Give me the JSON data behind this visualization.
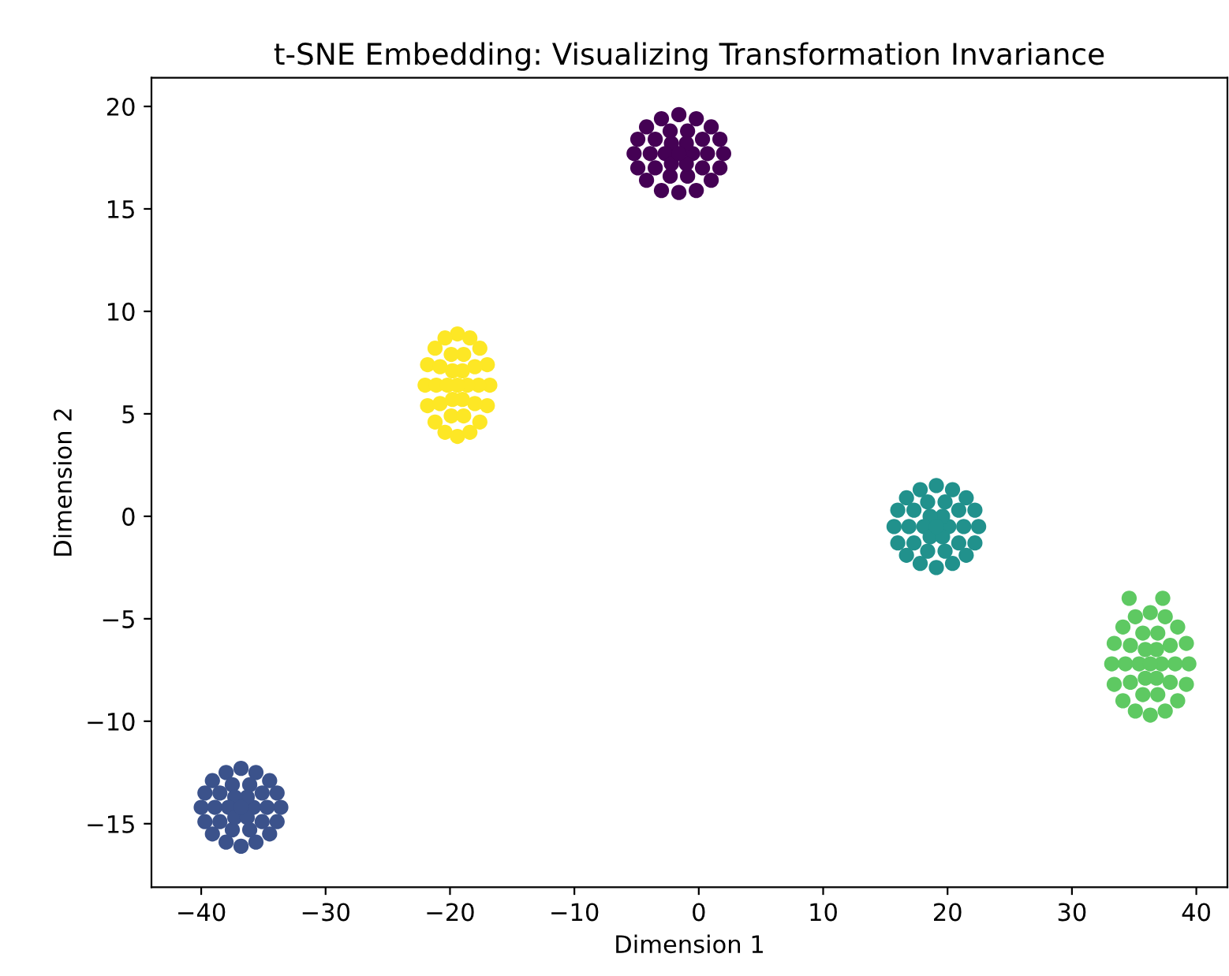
{
  "chart_data": {
    "type": "scatter",
    "title": "t-SNE Embedding: Visualizing Transformation Invariance",
    "xlabel": "Dimension 1",
    "ylabel": "Dimension 2",
    "xlim": [
      -44,
      42.5
    ],
    "ylim": [
      -18.1,
      21.4
    ],
    "xticks": [
      {
        "value": -40,
        "label": "−40"
      },
      {
        "value": -30,
        "label": "−30"
      },
      {
        "value": -20,
        "label": "−20"
      },
      {
        "value": -10,
        "label": "−10"
      },
      0,
      10,
      20,
      30,
      40
    ],
    "yticks": [
      {
        "value": -15,
        "label": "−15"
      },
      {
        "value": -10,
        "label": "−10"
      },
      {
        "value": -5,
        "label": "−5"
      },
      0,
      5,
      10,
      15,
      20
    ],
    "grid": false,
    "marker": "circle",
    "series": [
      {
        "color": "#440154",
        "x": [
          2.0,
          1.7,
          1.0,
          -0.2,
          -1.6,
          -3.0,
          -4.2,
          -4.9,
          -5.2,
          -4.9,
          -4.2,
          -3.0,
          -1.6,
          -0.2,
          1.0,
          1.7,
          0.7,
          0.3,
          -0.9,
          -2.3,
          -3.5,
          -3.9,
          -3.5,
          -2.3,
          -0.9,
          0.3,
          -0.5,
          -1.0,
          -2.2,
          -2.7,
          -2.2,
          -1.0,
          -1.6
        ],
        "values": [
          17.7,
          18.4,
          19.0,
          19.4,
          19.6,
          19.4,
          19.0,
          18.4,
          17.7,
          17.0,
          16.4,
          15.9,
          15.8,
          15.9,
          16.4,
          17.0,
          17.7,
          18.4,
          18.8,
          18.8,
          18.4,
          17.7,
          17.0,
          16.6,
          16.6,
          17.0,
          17.7,
          18.2,
          18.2,
          17.7,
          17.2,
          17.2,
          17.7
        ]
      },
      {
        "color": "#3b528b",
        "x": [
          -33.6,
          -33.9,
          -34.5,
          -35.6,
          -36.8,
          -38.0,
          -39.1,
          -39.7,
          -40.0,
          -39.7,
          -39.1,
          -38.0,
          -36.8,
          -35.6,
          -34.5,
          -33.9,
          -34.7,
          -35.1,
          -36.1,
          -37.5,
          -38.5,
          -38.9,
          -38.5,
          -37.5,
          -36.1,
          -35.1,
          -35.8,
          -36.3,
          -37.3,
          -37.8,
          -37.3,
          -36.3,
          -36.8
        ],
        "values": [
          -14.2,
          -13.5,
          -12.9,
          -12.5,
          -12.3,
          -12.5,
          -12.9,
          -13.5,
          -14.2,
          -14.9,
          -15.5,
          -15.9,
          -16.1,
          -15.9,
          -15.5,
          -14.9,
          -14.2,
          -13.5,
          -13.1,
          -13.1,
          -13.5,
          -14.2,
          -14.9,
          -15.3,
          -15.3,
          -14.9,
          -14.2,
          -13.7,
          -13.7,
          -14.2,
          -14.7,
          -14.7,
          -14.2
        ]
      },
      {
        "color": "#21918c",
        "x": [
          22.5,
          22.2,
          21.5,
          20.4,
          19.1,
          17.8,
          16.7,
          16.0,
          15.7,
          16.0,
          16.7,
          17.8,
          19.1,
          20.4,
          21.5,
          22.2,
          21.3,
          20.9,
          19.8,
          18.4,
          17.3,
          16.9,
          17.3,
          18.4,
          19.8,
          20.9,
          20.1,
          19.6,
          18.6,
          18.1,
          18.6,
          19.6,
          19.1
        ],
        "values": [
          -0.5,
          0.3,
          0.9,
          1.3,
          1.5,
          1.3,
          0.9,
          0.3,
          -0.5,
          -1.3,
          -1.9,
          -2.3,
          -2.5,
          -2.3,
          -1.9,
          -1.3,
          -0.5,
          0.3,
          0.7,
          0.7,
          0.3,
          -0.5,
          -1.3,
          -1.7,
          -1.7,
          -1.3,
          -0.5,
          0.0,
          0.0,
          -0.5,
          -1.0,
          -1.0,
          -0.5
        ]
      },
      {
        "color": "#5ec962",
        "x": [
          39.4,
          39.2,
          38.5,
          37.5,
          36.3,
          35.1,
          34.1,
          33.4,
          33.2,
          33.4,
          34.1,
          35.1,
          36.3,
          37.5,
          38.5,
          39.2,
          38.3,
          37.9,
          36.9,
          35.7,
          34.7,
          34.3,
          34.7,
          35.7,
          36.9,
          37.9,
          37.2,
          36.8,
          35.9,
          35.4,
          35.9,
          36.8,
          36.3,
          34.6,
          37.3
        ],
        "values": [
          -7.2,
          -6.2,
          -5.4,
          -4.9,
          -4.7,
          -4.9,
          -5.4,
          -6.2,
          -7.2,
          -8.2,
          -9.0,
          -9.5,
          -9.7,
          -9.5,
          -9.0,
          -8.2,
          -7.2,
          -6.3,
          -5.7,
          -5.7,
          -6.3,
          -7.2,
          -8.1,
          -8.7,
          -8.7,
          -8.1,
          -7.2,
          -6.5,
          -6.5,
          -7.2,
          -7.9,
          -7.9,
          -7.2,
          -4.0,
          -4.0
        ]
      },
      {
        "color": "#fde725",
        "x": [
          -16.8,
          -17.0,
          -17.6,
          -18.4,
          -19.4,
          -20.4,
          -21.2,
          -21.8,
          -22.0,
          -21.8,
          -21.2,
          -20.4,
          -19.4,
          -18.4,
          -17.6,
          -17.0,
          -17.7,
          -18.0,
          -18.9,
          -19.9,
          -20.8,
          -21.1,
          -20.8,
          -19.9,
          -18.9,
          -18.0,
          -18.6,
          -19.0,
          -19.8,
          -20.2,
          -19.8,
          -19.0,
          -19.4
        ],
        "values": [
          6.4,
          7.4,
          8.2,
          8.7,
          8.9,
          8.7,
          8.2,
          7.4,
          6.4,
          5.4,
          4.6,
          4.1,
          3.9,
          4.1,
          4.6,
          5.4,
          6.4,
          7.3,
          7.9,
          7.9,
          7.3,
          6.4,
          5.5,
          4.9,
          4.9,
          5.5,
          6.4,
          7.1,
          7.1,
          6.4,
          5.7,
          5.7,
          6.4
        ]
      }
    ]
  }
}
